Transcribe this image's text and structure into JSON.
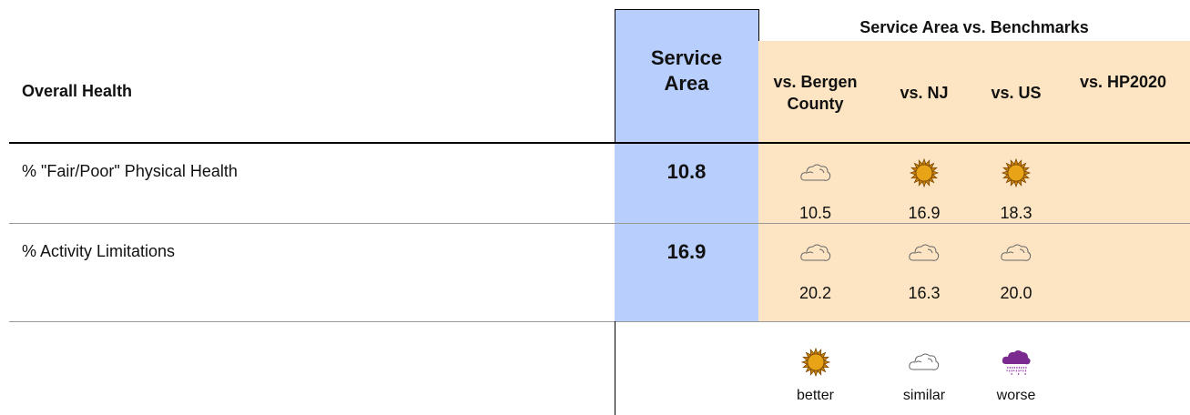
{
  "header": {
    "title": "Overall Health",
    "service_area": "Service Area",
    "benchmarks_title": "Service Area vs. Benchmarks",
    "benchmarks": [
      "vs. Bergen County",
      "vs. NJ",
      "vs. US",
      "vs. HP2020"
    ]
  },
  "rows": [
    {
      "label": "% \"Fair/Poor\" Physical Health",
      "value": "10.8",
      "cells": [
        {
          "value": "10.5",
          "rating": "similar"
        },
        {
          "value": "16.9",
          "rating": "better"
        },
        {
          "value": "18.3",
          "rating": "better"
        }
      ]
    },
    {
      "label": "% Activity Limitations",
      "value": "16.9",
      "cells": [
        {
          "value": "20.2",
          "rating": "similar"
        },
        {
          "value": "16.3",
          "rating": "similar"
        },
        {
          "value": "20.0",
          "rating": "similar"
        }
      ]
    }
  ],
  "legend": [
    "better",
    "similar",
    "worse"
  ]
}
